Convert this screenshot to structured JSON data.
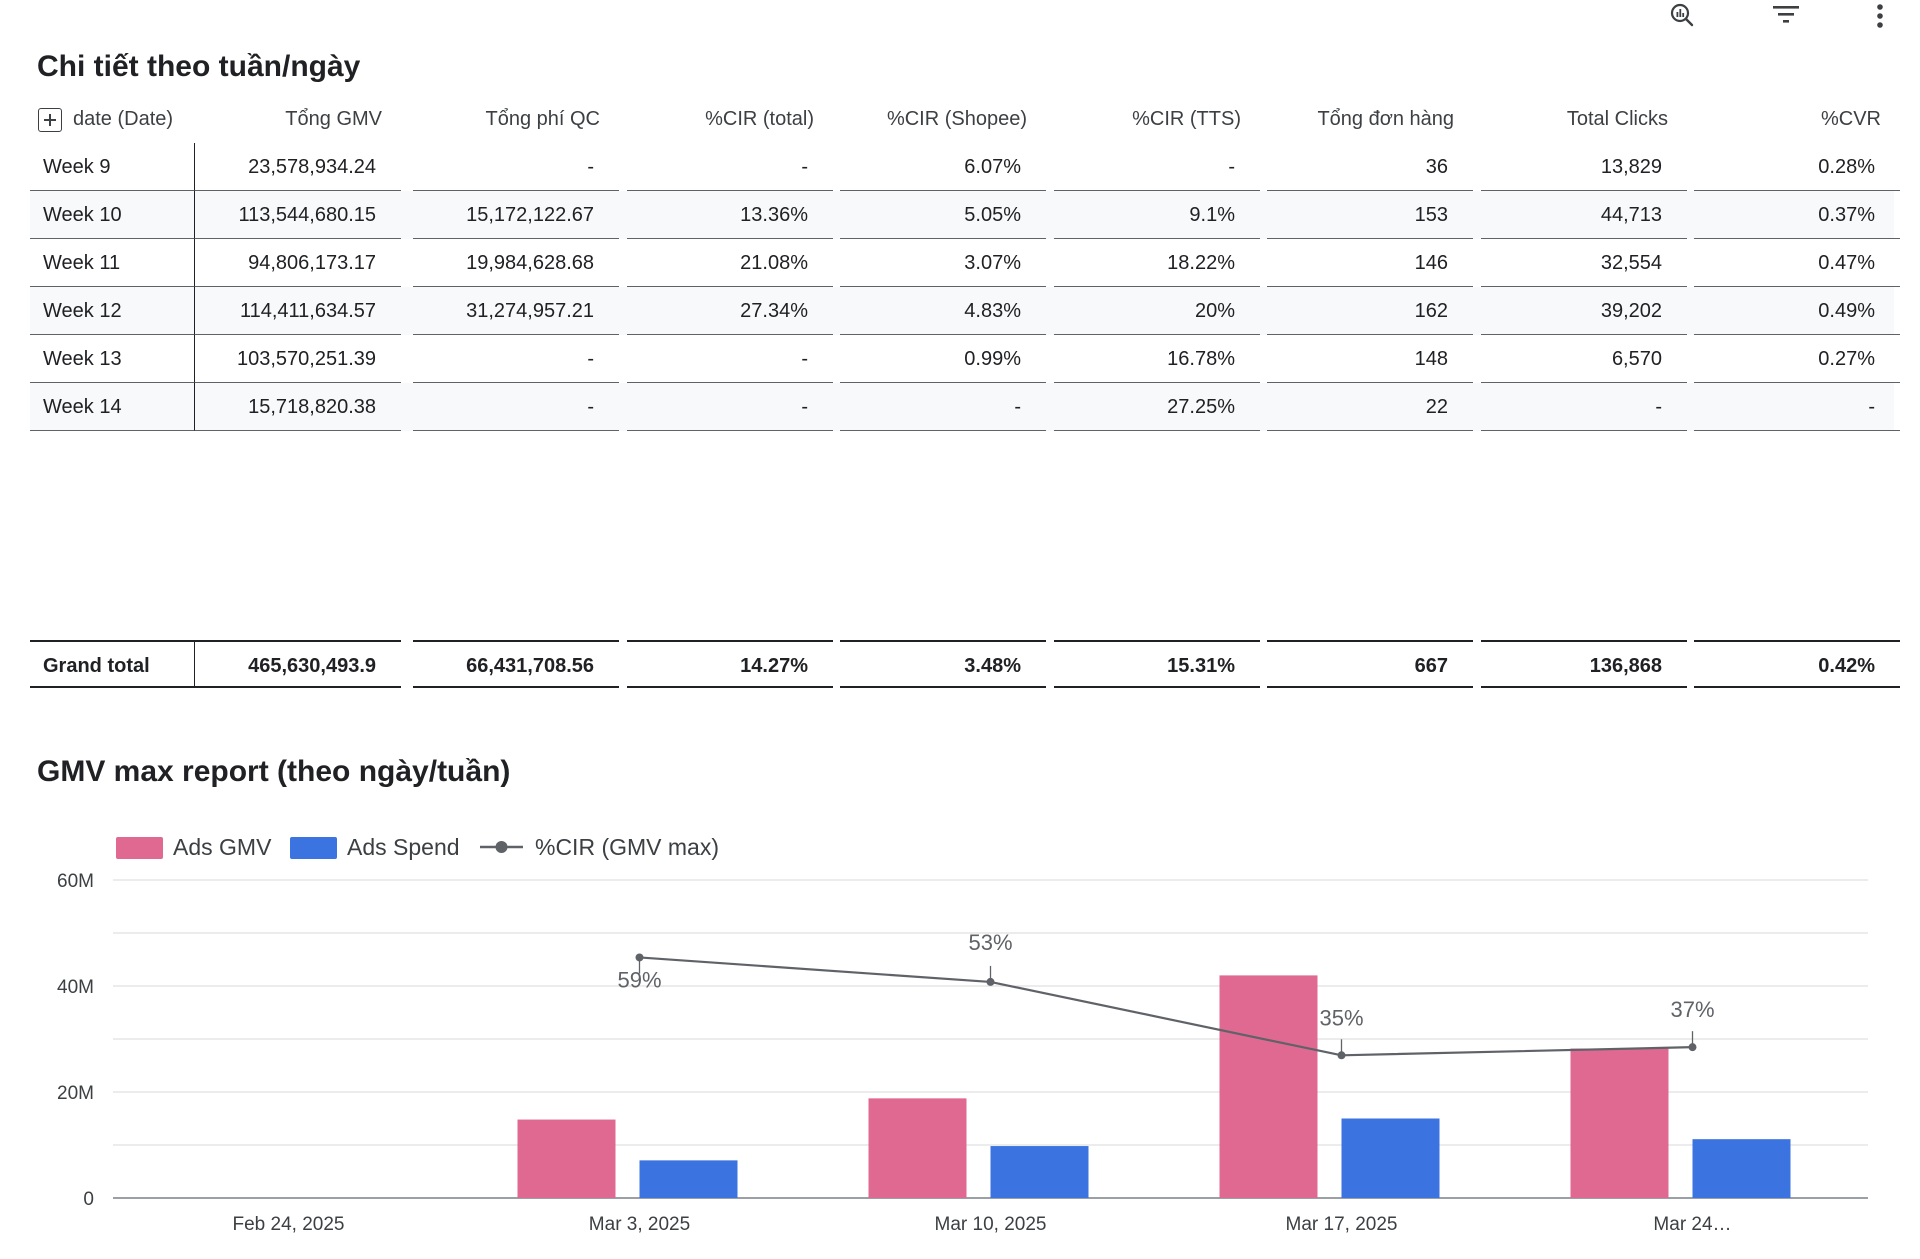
{
  "toolbar": {
    "icons": [
      "insights-icon",
      "filter-icon",
      "more-vert-icon"
    ]
  },
  "table_section": {
    "title": "Chi tiết theo tuần/ngày",
    "columns": [
      "date (Date)",
      "Tổng GMV",
      "Tổng phí QC",
      "%CIR (total)",
      "%CIR (Shopee)",
      "%CIR (TTS)",
      "Tổng đơn hàng",
      "Total Clicks",
      "%CVR"
    ],
    "rows": [
      [
        "Week 9",
        "23,578,934.24",
        "-",
        "-",
        "6.07%",
        "-",
        "36",
        "13,829",
        "0.28%"
      ],
      [
        "Week 10",
        "113,544,680.15",
        "15,172,122.67",
        "13.36%",
        "5.05%",
        "9.1%",
        "153",
        "44,713",
        "0.37%"
      ],
      [
        "Week 11",
        "94,806,173.17",
        "19,984,628.68",
        "21.08%",
        "3.07%",
        "18.22%",
        "146",
        "32,554",
        "0.47%"
      ],
      [
        "Week 12",
        "114,411,634.57",
        "31,274,957.21",
        "27.34%",
        "4.83%",
        "20%",
        "162",
        "39,202",
        "0.49%"
      ],
      [
        "Week 13",
        "103,570,251.39",
        "-",
        "-",
        "0.99%",
        "16.78%",
        "148",
        "6,570",
        "0.27%"
      ],
      [
        "Week 14",
        "15,718,820.38",
        "-",
        "-",
        "-",
        "27.25%",
        "22",
        "-",
        "-"
      ]
    ],
    "total": [
      "Grand total",
      "465,630,493.9",
      "66,431,708.56",
      "14.27%",
      "3.48%",
      "15.31%",
      "667",
      "136,868",
      "0.42%"
    ]
  },
  "chart_section": {
    "title": "GMV max report (theo ngày/tuần)"
  },
  "chart_data": {
    "type": "bar",
    "categories": [
      "Feb 24, 2025",
      "Mar 3, 2025",
      "Mar 10, 2025",
      "Mar 17, 2025",
      "Mar 24…"
    ],
    "series": [
      {
        "name": "Ads GMV",
        "kind": "bar",
        "color": "#e06991",
        "values": [
          0,
          14800000,
          18800000,
          42000000,
          28200000
        ]
      },
      {
        "name": "Ads Spend",
        "kind": "bar",
        "color": "#3b73e0",
        "values": [
          0,
          7100000,
          9800000,
          15000000,
          11100000
        ]
      },
      {
        "name": "%CIR (GMV max)",
        "kind": "line",
        "color": "#5f6368",
        "axis": "right",
        "values": [
          null,
          59,
          53,
          35,
          37
        ],
        "labels": [
          "",
          "59%",
          "53%",
          "35%",
          "37%"
        ]
      }
    ],
    "y_ticks": [
      "0",
      "20M",
      "40M",
      "60M"
    ],
    "ylim": [
      0,
      60000000
    ],
    "y2lim": [
      0,
      78
    ],
    "grid": true,
    "legend": "top-left"
  }
}
